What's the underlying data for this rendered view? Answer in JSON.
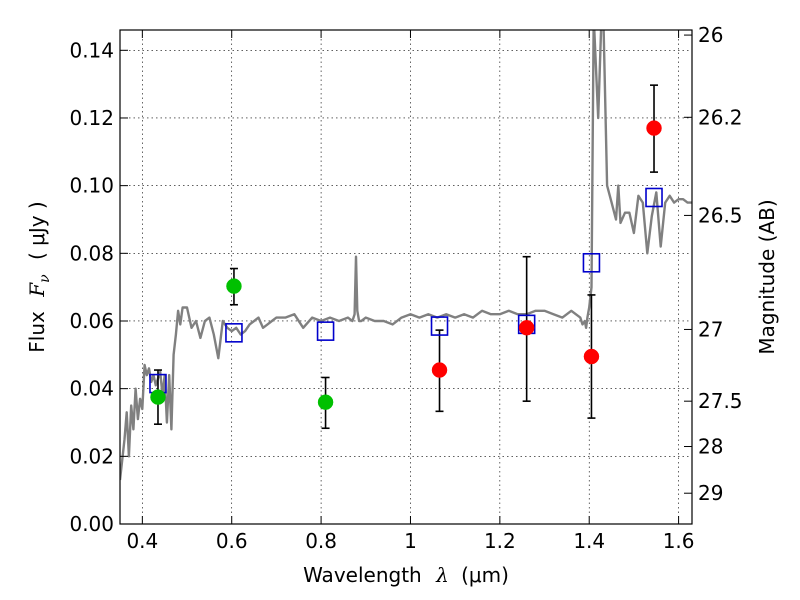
{
  "chart_data": {
    "type": "scatter",
    "xlabel_prefix": "Wavelength",
    "xlabel_symbol": "λ",
    "xlabel_unit": "(μm)",
    "ylabel_prefix": "Flux",
    "ylabel_symbol": "F",
    "ylabel_subscript": "ν",
    "ylabel_unit": "( μJy )",
    "y2label": "Magnitude (AB)",
    "xlim": [
      0.35,
      1.63
    ],
    "ylim": [
      0.0,
      0.146
    ],
    "grid": true,
    "x_ticks": [
      0.4,
      0.6,
      0.8,
      1.0,
      1.2,
      1.4,
      1.6
    ],
    "x_tick_labels": [
      "0.4",
      "0.6",
      "0.8",
      "1",
      "1.2",
      "1.4",
      "1.6"
    ],
    "y_ticks": [
      0.0,
      0.02,
      0.04,
      0.06,
      0.08,
      0.1,
      0.12,
      0.14
    ],
    "y_tick_labels": [
      "0.00",
      "0.02",
      "0.04",
      "0.06",
      "0.08",
      "0.10",
      "0.12",
      "0.14"
    ],
    "y2_ticks": [
      {
        "label": "26",
        "flux": 0.1445
      },
      {
        "label": "26.2",
        "flux": 0.1202
      },
      {
        "label": "26.5",
        "flux": 0.0912
      },
      {
        "label": "27",
        "flux": 0.0575
      },
      {
        "label": "27.5",
        "flux": 0.0363
      },
      {
        "label": "28",
        "flux": 0.0229
      },
      {
        "label": "29",
        "flux": 0.0091
      }
    ],
    "series": [
      {
        "kind": "spectrum",
        "color": "#808080",
        "x": [
          0.35,
          0.36,
          0.365,
          0.37,
          0.375,
          0.38,
          0.385,
          0.39,
          0.395,
          0.4,
          0.405,
          0.41,
          0.415,
          0.42,
          0.425,
          0.43,
          0.435,
          0.44,
          0.445,
          0.45,
          0.455,
          0.46,
          0.465,
          0.47,
          0.475,
          0.48,
          0.485,
          0.49,
          0.5,
          0.51,
          0.52,
          0.53,
          0.54,
          0.55,
          0.56,
          0.57,
          0.58,
          0.59,
          0.6,
          0.61,
          0.62,
          0.63,
          0.64,
          0.65,
          0.66,
          0.67,
          0.68,
          0.69,
          0.7,
          0.72,
          0.74,
          0.76,
          0.78,
          0.8,
          0.82,
          0.84,
          0.86,
          0.87,
          0.875,
          0.878,
          0.881,
          0.885,
          0.89,
          0.9,
          0.92,
          0.94,
          0.96,
          0.98,
          1.0,
          1.02,
          1.04,
          1.06,
          1.08,
          1.1,
          1.12,
          1.14,
          1.16,
          1.18,
          1.2,
          1.22,
          1.24,
          1.26,
          1.28,
          1.3,
          1.32,
          1.34,
          1.36,
          1.38,
          1.385,
          1.39,
          1.393,
          1.396,
          1.4,
          1.405,
          1.41,
          1.42,
          1.43,
          1.44,
          1.45,
          1.46,
          1.465,
          1.47,
          1.48,
          1.49,
          1.5,
          1.51,
          1.52,
          1.53,
          1.54,
          1.55,
          1.56,
          1.57,
          1.58,
          1.59,
          1.6,
          1.61,
          1.62,
          1.63
        ],
        "y": [
          0.013,
          0.025,
          0.033,
          0.02,
          0.035,
          0.028,
          0.04,
          0.031,
          0.037,
          0.034,
          0.047,
          0.044,
          0.046,
          0.042,
          0.044,
          0.041,
          0.043,
          0.045,
          0.038,
          0.044,
          0.03,
          0.044,
          0.028,
          0.05,
          0.056,
          0.063,
          0.059,
          0.064,
          0.064,
          0.058,
          0.06,
          0.055,
          0.06,
          0.061,
          0.056,
          0.049,
          0.06,
          0.058,
          0.057,
          0.058,
          0.056,
          0.057,
          0.059,
          0.06,
          0.061,
          0.058,
          0.059,
          0.06,
          0.061,
          0.061,
          0.062,
          0.058,
          0.061,
          0.06,
          0.061,
          0.06,
          0.061,
          0.06,
          0.062,
          0.079,
          0.063,
          0.06,
          0.06,
          0.061,
          0.06,
          0.06,
          0.059,
          0.061,
          0.062,
          0.061,
          0.062,
          0.061,
          0.062,
          0.061,
          0.062,
          0.061,
          0.063,
          0.062,
          0.062,
          0.063,
          0.062,
          0.062,
          0.063,
          0.063,
          0.062,
          0.061,
          0.063,
          0.061,
          0.059,
          0.06,
          0.058,
          0.061,
          0.064,
          0.07,
          0.15,
          0.12,
          0.16,
          0.1,
          0.095,
          0.09,
          0.1,
          0.089,
          0.092,
          0.092,
          0.086,
          0.097,
          0.095,
          0.08,
          0.091,
          0.098,
          0.082,
          0.095,
          0.097,
          0.095,
          0.096,
          0.096,
          0.095,
          0.095
        ],
        "x_line_end": 1.63
      },
      {
        "kind": "model-photometry",
        "marker": "open-square",
        "color": "#0000cc",
        "x": [
          0.435,
          0.605,
          0.81,
          1.065,
          1.26,
          1.405,
          1.545
        ],
        "y": [
          0.0415,
          0.0565,
          0.057,
          0.0585,
          0.059,
          0.0772,
          0.0965
        ]
      },
      {
        "kind": "observed-optical",
        "marker": "filled-circle",
        "color": "#00c000",
        "x": [
          0.435,
          0.605,
          0.81
        ],
        "y": [
          0.0375,
          0.0703,
          0.036
        ],
        "yerr_low": [
          0.0295,
          0.0648,
          0.0283
        ],
        "yerr_high": [
          0.0455,
          0.0755,
          0.0433
        ]
      },
      {
        "kind": "observed-nir",
        "marker": "filled-circle",
        "color": "#ff0000",
        "x": [
          1.065,
          1.26,
          1.405,
          1.545
        ],
        "y": [
          0.0455,
          0.058,
          0.0495,
          0.117
        ],
        "yerr_low": [
          0.0333,
          0.0363,
          0.0313,
          0.104
        ],
        "yerr_high": [
          0.0573,
          0.079,
          0.0677,
          0.1297
        ]
      }
    ]
  }
}
